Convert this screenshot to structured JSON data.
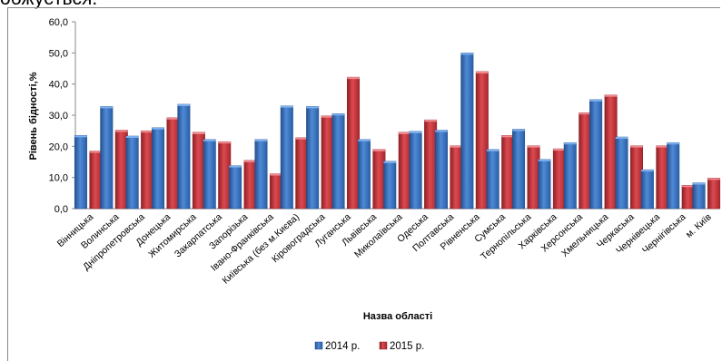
{
  "top_text": "обжується.",
  "chart_data": {
    "type": "bar",
    "xlabel": "Назва області",
    "ylabel": "Рівень бідності,%",
    "ylim": [
      0,
      60
    ],
    "yticks": [
      "0,0",
      "10,0",
      "20,0",
      "30,0",
      "40,0",
      "50,0",
      "60,0"
    ],
    "grid": false,
    "legend_position": "bottom",
    "categories": [
      "Вінницька",
      "Волинська",
      "Дніпропетровська",
      "Донецька",
      "Житомирська",
      "Закарпатська",
      "Запорізька",
      "Івано-Франківська",
      "Київська (без м.Києва)",
      "Кіровоградська",
      "Луганська",
      "Львівська",
      "Миколаївська",
      "Одеська",
      "Полтавська",
      "Рівненська",
      "Сумська",
      "Тернопільська",
      "Харківська",
      "Херсонська",
      "Хмельницька",
      "Черкаська",
      "Чернівецька",
      "Чернігівська",
      "м. Київ"
    ],
    "series": [
      {
        "name": "2014 р.",
        "color": "#3a75c0",
        "values": [
          23.5,
          32.8,
          23.3,
          26.0,
          33.5,
          22.2,
          13.8,
          22.2,
          33.0,
          32.8,
          30.5,
          22.2,
          15.2,
          24.8,
          25.2,
          50.0,
          19.0,
          25.5,
          15.8,
          21.2,
          35.0,
          23.0,
          12.5,
          21.2,
          8.3
        ]
      },
      {
        "name": "2015 р.",
        "color": "#c9323a",
        "values": [
          18.5,
          25.2,
          25.0,
          29.2,
          24.5,
          21.5,
          15.5,
          11.2,
          22.8,
          29.8,
          42.2,
          19.0,
          24.5,
          28.5,
          20.2,
          44.0,
          23.5,
          20.2,
          19.2,
          30.8,
          36.5,
          20.2,
          20.2,
          7.5,
          9.8
        ]
      }
    ]
  }
}
